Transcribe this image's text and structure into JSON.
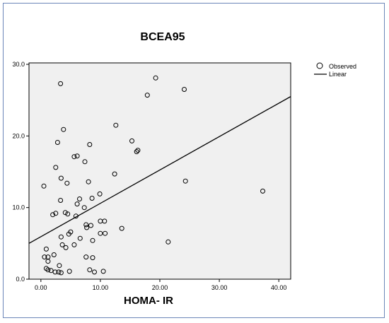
{
  "chart_data": {
    "type": "scatter",
    "title": "BCEA95",
    "xlabel": "HOMA- IR",
    "ylabel": "",
    "xlim": [
      -2,
      42
    ],
    "ylim": [
      0,
      30.2
    ],
    "xticks": [
      0,
      10,
      20,
      30,
      40
    ],
    "xtick_labels": [
      "0.00",
      "10.00",
      "20.00",
      "30.00",
      "40.00"
    ],
    "yticks": [
      0,
      10,
      20,
      30
    ],
    "ytick_labels": [
      "0.0",
      "10.0",
      "20.0",
      "30.0"
    ],
    "grid": false,
    "background_color": "#f0f0f0",
    "legend_position": "top-right outside",
    "series": [
      {
        "name": "Observed",
        "marker": "circle",
        "points": [
          [
            3.3,
            27.3
          ],
          [
            19.3,
            28.1
          ],
          [
            24.1,
            26.5
          ],
          [
            17.9,
            25.7
          ],
          [
            12.6,
            21.5
          ],
          [
            3.8,
            20.9
          ],
          [
            15.3,
            19.3
          ],
          [
            2.8,
            19.1
          ],
          [
            8.2,
            18.8
          ],
          [
            16.3,
            18.0
          ],
          [
            16.1,
            17.8
          ],
          [
            6.1,
            17.2
          ],
          [
            5.6,
            17.1
          ],
          [
            7.4,
            16.4
          ],
          [
            2.5,
            15.6
          ],
          [
            12.4,
            14.7
          ],
          [
            3.4,
            14.1
          ],
          [
            24.3,
            13.7
          ],
          [
            8.0,
            13.6
          ],
          [
            4.4,
            13.4
          ],
          [
            0.5,
            13.0
          ],
          [
            37.3,
            12.3
          ],
          [
            9.9,
            11.9
          ],
          [
            8.6,
            11.3
          ],
          [
            6.5,
            11.2
          ],
          [
            3.3,
            11.0
          ],
          [
            6.1,
            10.5
          ],
          [
            7.3,
            10.0
          ],
          [
            4.1,
            9.3
          ],
          [
            4.5,
            9.1
          ],
          [
            2.5,
            9.2
          ],
          [
            2.0,
            9.0
          ],
          [
            5.9,
            8.8
          ],
          [
            10.0,
            8.1
          ],
          [
            10.7,
            8.1
          ],
          [
            7.6,
            7.6
          ],
          [
            8.4,
            7.5
          ],
          [
            7.7,
            7.2
          ],
          [
            13.6,
            7.1
          ],
          [
            5.0,
            6.6
          ],
          [
            4.7,
            6.3
          ],
          [
            10.0,
            6.4
          ],
          [
            10.8,
            6.4
          ],
          [
            3.4,
            5.9
          ],
          [
            6.6,
            5.7
          ],
          [
            8.7,
            5.4
          ],
          [
            21.4,
            5.2
          ],
          [
            3.6,
            4.8
          ],
          [
            5.6,
            4.8
          ],
          [
            4.2,
            4.4
          ],
          [
            0.9,
            4.2
          ],
          [
            2.2,
            3.4
          ],
          [
            7.6,
            3.1
          ],
          [
            8.7,
            3.0
          ],
          [
            0.6,
            3.1
          ],
          [
            1.2,
            3.1
          ],
          [
            1.2,
            2.5
          ],
          [
            3.1,
            1.9
          ],
          [
            0.9,
            1.5
          ],
          [
            1.2,
            1.3
          ],
          [
            1.7,
            1.2
          ],
          [
            2.4,
            1.0
          ],
          [
            3.0,
            1.0
          ],
          [
            3.4,
            0.9
          ],
          [
            4.8,
            1.1
          ],
          [
            8.2,
            1.3
          ],
          [
            9.0,
            1.0
          ],
          [
            10.5,
            1.1
          ]
        ]
      },
      {
        "name": "Linear",
        "type": "line",
        "points": [
          [
            -2,
            5.0
          ],
          [
            42,
            25.5
          ]
        ]
      }
    ]
  }
}
